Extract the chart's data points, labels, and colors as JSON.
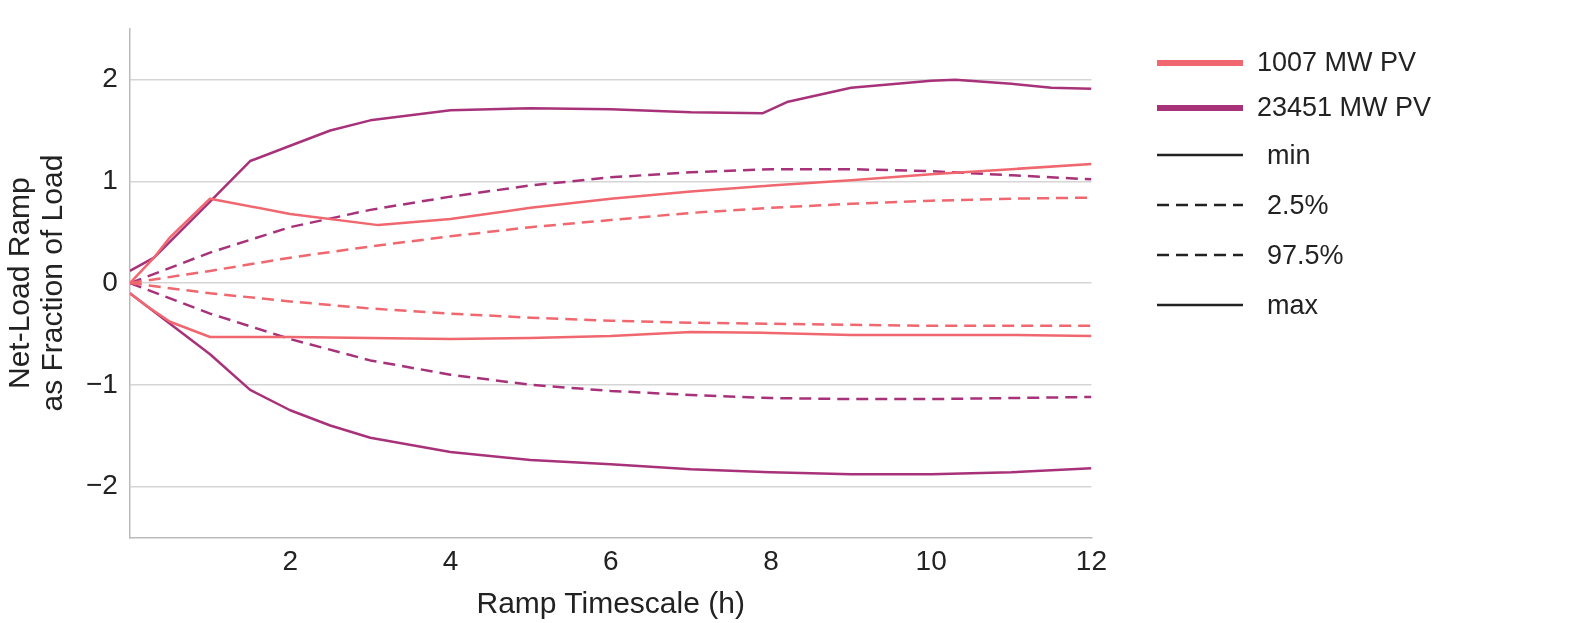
{
  "chart_data": {
    "type": "line",
    "xlabel": "Ramp Timescale (h)",
    "ylabel": "Net-Load Ramp\nas Fraction of Load",
    "xlim": [
      0,
      12
    ],
    "ylim": [
      -2.5,
      2.5
    ],
    "xticks": [
      2,
      4,
      6,
      8,
      10,
      12
    ],
    "yticks": [
      -2,
      -1,
      0,
      1,
      2
    ],
    "grid": "y",
    "legend": "right",
    "marker": "none",
    "annotations": [
      "min",
      "2.5%",
      "97.5%",
      "max"
    ],
    "series": [
      {
        "color": "#f0676f",
        "line_style": "solid",
        "x": [
          0,
          0.2,
          0.5,
          1,
          1.5,
          2,
          3,
          4,
          5,
          6,
          7,
          8,
          9,
          10,
          11,
          12
        ],
        "values": [
          -0.1,
          -0.22,
          -0.38,
          -0.53,
          -0.53,
          -0.53,
          -0.54,
          -0.55,
          -0.54,
          -0.52,
          -0.48,
          -0.49,
          -0.51,
          -0.51,
          -0.51,
          -0.52
        ]
      },
      {
        "color": "#f0676f",
        "line_style": "dashed",
        "x": [
          0,
          1,
          2,
          3,
          4,
          5,
          6,
          7,
          8,
          9,
          10,
          11,
          12
        ],
        "values": [
          0,
          -0.1,
          -0.18,
          -0.25,
          -0.3,
          -0.34,
          -0.37,
          -0.39,
          -0.4,
          -0.41,
          -0.42,
          -0.42,
          -0.42
        ]
      },
      {
        "color": "#f0676f",
        "line_style": "dashed",
        "x": [
          0,
          1,
          2,
          3,
          4,
          5,
          6,
          7,
          8,
          9,
          10,
          11,
          12
        ],
        "values": [
          0,
          0.12,
          0.25,
          0.36,
          0.46,
          0.55,
          0.62,
          0.69,
          0.74,
          0.78,
          0.81,
          0.83,
          0.84
        ]
      },
      {
        "name": "1007 MW PV",
        "color": "#f0676f",
        "line_style": "solid",
        "x": [
          0,
          0.3,
          0.5,
          1,
          2,
          3.1,
          4,
          5,
          6,
          7,
          8,
          9,
          10,
          11,
          12
        ],
        "values": [
          0,
          0.25,
          0.45,
          0.83,
          0.68,
          0.57,
          0.63,
          0.74,
          0.83,
          0.9,
          0.96,
          1.01,
          1.07,
          1.12,
          1.17
        ]
      },
      {
        "color": "#a8327a",
        "line_style": "solid",
        "x": [
          0,
          0.5,
          1,
          1.5,
          2,
          2.5,
          3,
          4,
          5,
          6,
          7,
          8,
          9,
          10,
          11,
          12
        ],
        "values": [
          -0.1,
          -0.4,
          -0.7,
          -1.05,
          -1.25,
          -1.4,
          -1.52,
          -1.66,
          -1.74,
          -1.78,
          -1.83,
          -1.86,
          -1.88,
          -1.88,
          -1.86,
          -1.82
        ]
      },
      {
        "color": "#a8327a",
        "line_style": "dashed",
        "x": [
          0,
          1,
          2,
          3,
          4,
          5,
          6,
          7,
          8,
          9,
          10,
          11,
          12
        ],
        "values": [
          0,
          -0.3,
          -0.55,
          -0.76,
          -0.9,
          -1.0,
          -1.06,
          -1.1,
          -1.13,
          -1.14,
          -1.14,
          -1.13,
          -1.12
        ]
      },
      {
        "color": "#a8327a",
        "line_style": "dashed",
        "x": [
          0,
          1,
          2,
          3,
          4,
          5,
          6,
          7,
          8,
          9,
          10,
          11,
          12
        ],
        "values": [
          0,
          0.3,
          0.55,
          0.72,
          0.85,
          0.96,
          1.04,
          1.09,
          1.12,
          1.12,
          1.1,
          1.06,
          1.02
        ]
      },
      {
        "name": "23451 MW PV",
        "color": "#a8327a",
        "line_style": "solid",
        "x": [
          0,
          0.3,
          1,
          1.5,
          2,
          2.5,
          3,
          4,
          5,
          6,
          7,
          7.9,
          8.2,
          9,
          10,
          10.3,
          11,
          11.5,
          12
        ],
        "values": [
          0.12,
          0.25,
          0.8,
          1.2,
          1.35,
          1.5,
          1.6,
          1.7,
          1.72,
          1.71,
          1.68,
          1.67,
          1.78,
          1.92,
          1.99,
          2.0,
          1.96,
          1.92,
          1.91
        ]
      }
    ]
  }
}
